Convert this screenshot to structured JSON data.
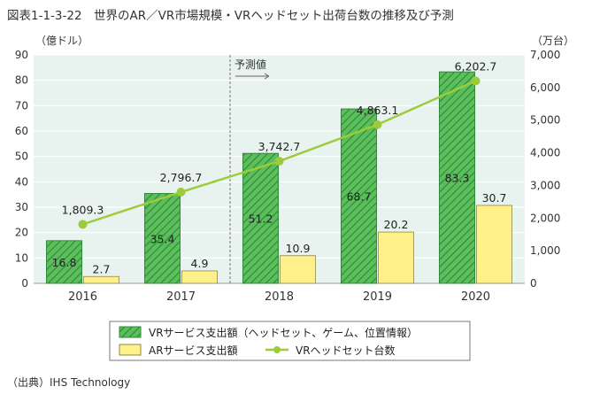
{
  "figure_title": "図表1-1-3-22　世界のAR／VR市場規模・VRヘッドセット出荷台数の推移及び予測",
  "source_note": "（出典）IHS Technology",
  "colors": {
    "vr_bar": "#5cbf5c",
    "vr_hatch": "#2e8b3a",
    "ar_bar": "#fff08a",
    "ar_border": "#8a8a4a",
    "line": "#9ccc3c",
    "plot_bg": "#e8f3ef",
    "grid": "#ffffff",
    "forecast_divider": "#777777"
  },
  "chart_data": {
    "type": "bar",
    "title": "世界のAR／VR市場規模・VRヘッドセット出荷台数の推移及び予測",
    "categories": [
      "2016",
      "2017",
      "2018",
      "2019",
      "2020"
    ],
    "y_left": {
      "unit_label": "（億ドル）",
      "ylim": [
        0,
        90
      ],
      "ticks": [
        0,
        10,
        20,
        30,
        40,
        50,
        60,
        70,
        80,
        90
      ]
    },
    "y_right": {
      "unit_label": "（万台）",
      "ylim": [
        0,
        7000
      ],
      "ticks": [
        0,
        1000,
        2000,
        3000,
        4000,
        5000,
        6000,
        7000
      ],
      "tick_labels": [
        "0",
        "1,000",
        "2,000",
        "3,000",
        "4,000",
        "5,000",
        "6,000",
        "7,000"
      ]
    },
    "grid": true,
    "legend_position": "bottom",
    "forecast": {
      "label": "予測値",
      "starts_before_category": "2018"
    },
    "series": [
      {
        "name": "VRサービス支出額（ヘッドセット、ゲーム、位置情報）",
        "kind": "bar",
        "axis": "left",
        "values": [
          16.8,
          35.4,
          51.2,
          68.7,
          83.3
        ],
        "value_labels": [
          "16.8",
          "35.4",
          "51.2",
          "68.7",
          "83.3"
        ]
      },
      {
        "name": "ARサービス支出額",
        "kind": "bar",
        "axis": "left",
        "values": [
          2.7,
          4.9,
          10.9,
          20.2,
          30.7
        ],
        "value_labels": [
          "2.7",
          "4.9",
          "10.9",
          "20.2",
          "30.7"
        ]
      },
      {
        "name": "VRヘッドセット台数",
        "kind": "line",
        "axis": "right",
        "values": [
          1809.3,
          2796.7,
          3742.7,
          4863.1,
          6202.7
        ],
        "value_labels": [
          "1,809.3",
          "2,796.7",
          "3,742.7",
          "4,863.1",
          "6,202.7"
        ]
      }
    ]
  }
}
